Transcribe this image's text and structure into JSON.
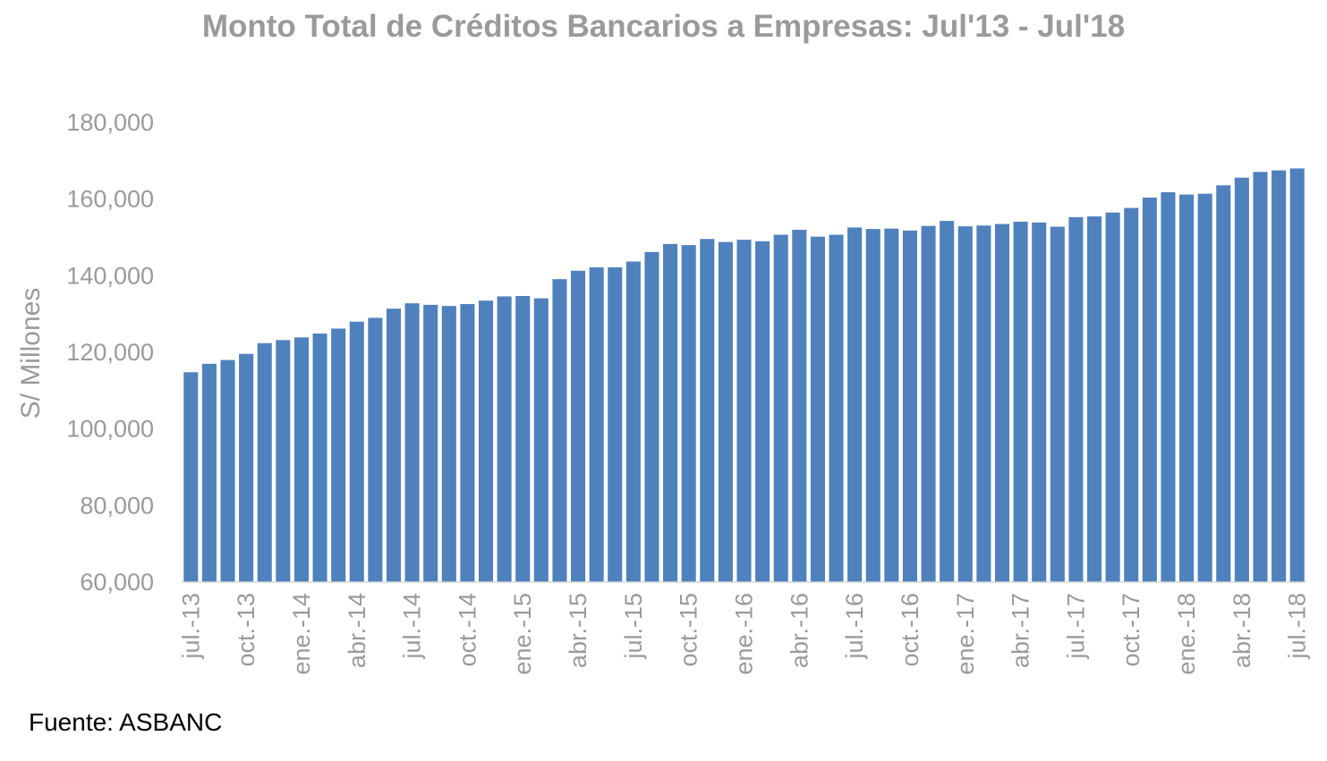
{
  "chart_data": {
    "type": "bar",
    "title": "Monto Total de Créditos Bancarios a Empresas: Jul'13 - Jul'18",
    "xlabel": "",
    "ylabel": "S/ Millones",
    "ylim": [
      60000,
      180000
    ],
    "yticks": [
      "60,000",
      "80,000",
      "100,000",
      "120,000",
      "140,000",
      "160,000",
      "180,000"
    ],
    "xtick_labels": [
      {
        "index": 0,
        "label": "jul.-13"
      },
      {
        "index": 3,
        "label": "oct.-13"
      },
      {
        "index": 6,
        "label": "ene.-14"
      },
      {
        "index": 9,
        "label": "abr.-14"
      },
      {
        "index": 12,
        "label": "jul.-14"
      },
      {
        "index": 15,
        "label": "oct.-14"
      },
      {
        "index": 18,
        "label": "ene.-15"
      },
      {
        "index": 21,
        "label": "abr.-15"
      },
      {
        "index": 24,
        "label": "jul.-15"
      },
      {
        "index": 27,
        "label": "oct.-15"
      },
      {
        "index": 30,
        "label": "ene.-16"
      },
      {
        "index": 33,
        "label": "abr.-16"
      },
      {
        "index": 36,
        "label": "jul.-16"
      },
      {
        "index": 39,
        "label": "oct.-16"
      },
      {
        "index": 42,
        "label": "ene.-17"
      },
      {
        "index": 45,
        "label": "abr.-17"
      },
      {
        "index": 48,
        "label": "jul.-17"
      },
      {
        "index": 51,
        "label": "oct.-17"
      },
      {
        "index": 54,
        "label": "ene.-18"
      },
      {
        "index": 57,
        "label": "abr.-18"
      },
      {
        "index": 60,
        "label": "jul.-18"
      }
    ],
    "values": [
      114800,
      117000,
      118000,
      119600,
      122400,
      123200,
      123900,
      124900,
      126200,
      128000,
      129000,
      131400,
      132800,
      132400,
      132100,
      132600,
      133500,
      134600,
      134700,
      134100,
      139100,
      141300,
      142200,
      142200,
      143700,
      146200,
      148300,
      148000,
      149600,
      148800,
      149400,
      149000,
      150700,
      152000,
      150200,
      150700,
      152600,
      152200,
      152300,
      151800,
      153000,
      154300,
      152900,
      153100,
      153500,
      154100,
      153900,
      152800,
      155300,
      155500,
      156500,
      157700,
      160400,
      161800,
      161200,
      161400,
      163600,
      165600,
      167100,
      167500,
      168000
    ],
    "bar_color": "#4f81bd",
    "grid": false,
    "legend": "none"
  },
  "source_note": "Fuente: ASBANC"
}
